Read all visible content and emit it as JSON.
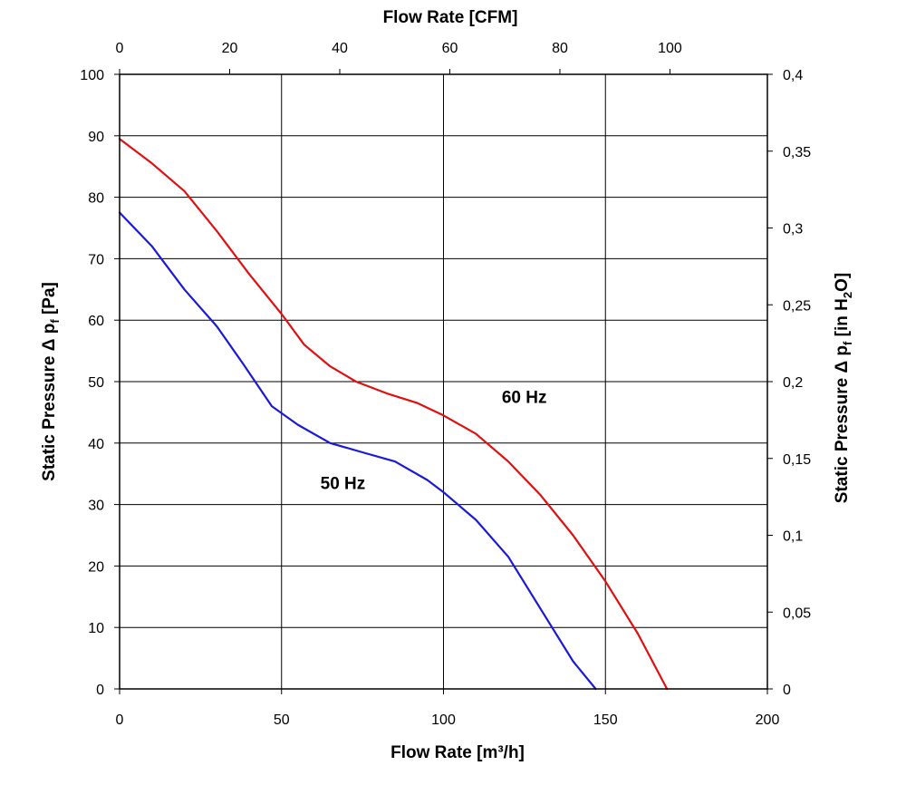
{
  "chart_data": {
    "type": "line",
    "title": "",
    "xlabel_bottom": "Flow Rate [m³/h]",
    "xlabel_top": "Flow Rate [CFM]",
    "ylabel_left": {
      "main": "Static Pressure Δ p",
      "sub": "f",
      "tail": " [Pa]"
    },
    "ylabel_right": {
      "main": "Static Pressure Δ p",
      "sub": "f",
      "mid": " [in H",
      "sub2": "2",
      "tail": "O]"
    },
    "xlim": [
      0,
      200
    ],
    "ylim": [
      0,
      100
    ],
    "x2lim": [
      0,
      117.7
    ],
    "y2lim": [
      0,
      0.4
    ],
    "grid": true,
    "x_ticks": [
      "0",
      "50",
      "100",
      "150",
      "200"
    ],
    "y_ticks": [
      "0",
      "10",
      "20",
      "30",
      "40",
      "50",
      "60",
      "70",
      "80",
      "90",
      "100"
    ],
    "x2_ticks": [
      "0",
      "20",
      "40",
      "60",
      "80",
      "100"
    ],
    "y2_ticks": [
      "0",
      "0,05",
      "0,1",
      "0,15",
      "0,2",
      "0,25",
      "0,3",
      "0,35",
      "0,4"
    ],
    "series": [
      {
        "name": "60 Hz",
        "color": "#e01010",
        "x": [
          0,
          10,
          20,
          30,
          40,
          50,
          57,
          65,
          73,
          83,
          92,
          100,
          110,
          120,
          130,
          140,
          150,
          160,
          169
        ],
        "y": [
          89.5,
          85.5,
          81,
          74.5,
          67.5,
          61,
          56,
          52.5,
          50,
          48,
          46.5,
          44.5,
          41.5,
          37,
          31.5,
          25,
          17.5,
          9,
          0
        ]
      },
      {
        "name": "50 Hz",
        "color": "#1a1ad8",
        "x": [
          0,
          10,
          20,
          30,
          38,
          47,
          55,
          65,
          75,
          85,
          95,
          100,
          110,
          120,
          130,
          140,
          147
        ],
        "y": [
          77.5,
          72,
          65,
          59,
          53,
          46,
          43,
          40,
          38.5,
          37,
          34,
          32,
          27.5,
          21.5,
          13,
          4.5,
          0
        ]
      }
    ],
    "annotations": [
      {
        "text": "60 Hz",
        "x": 118,
        "y": 46.5
      },
      {
        "text": "50 Hz",
        "x": 62,
        "y": 32.5
      }
    ]
  }
}
